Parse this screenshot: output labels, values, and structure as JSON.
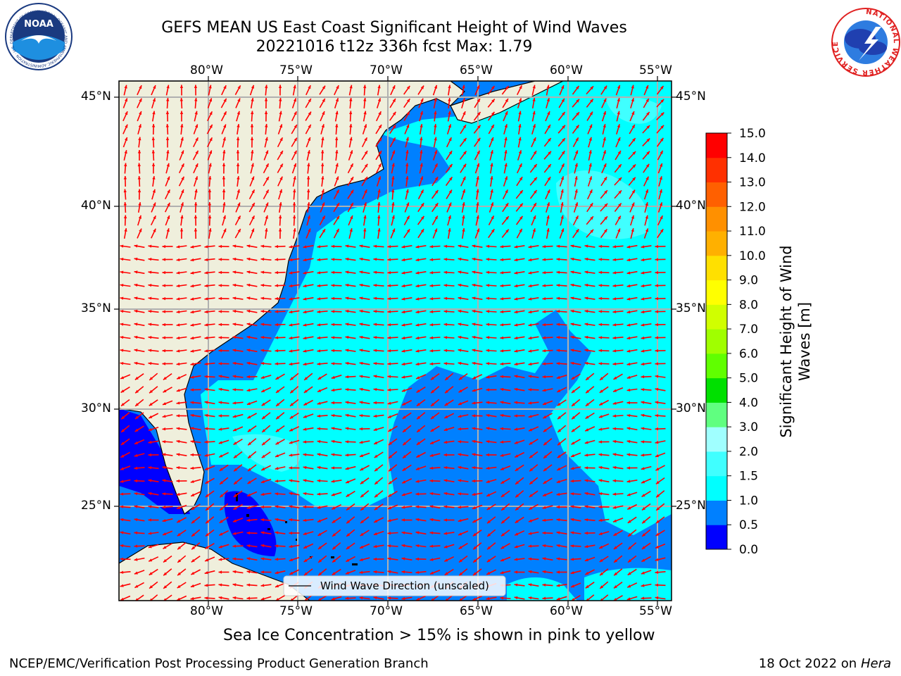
{
  "header": {
    "title_line1": "GEFS MEAN US East Coast Significant Height of Wind Waves",
    "title_line2": "20221016 t12z 336h fcst   Max: 1.79"
  },
  "logos": {
    "noaa": {
      "text": "NOAA",
      "ring_text": "NATIONAL OCEANIC AND ATMOSPHERIC ADMINISTRATION · U.S. DEPARTMENT OF COMMERCE"
    },
    "nws": {
      "ring_text": "NATIONAL WEATHER SERVICE"
    }
  },
  "map": {
    "lon_labels": [
      "80°W",
      "75°W",
      "70°W",
      "65°W",
      "60°W",
      "55°W"
    ],
    "lat_labels": [
      "45°N",
      "40°N",
      "35°N",
      "30°N",
      "25°N"
    ],
    "legend_label": "Wind Wave Direction (unscaled)",
    "arrow_color": "#ff0000",
    "land_color": "#efefdc"
  },
  "colorbar": {
    "label_line1": "Significant Height of Wind",
    "label_line2": "Waves [m]",
    "ticks": [
      "0.0",
      "0.5",
      "1.0",
      "1.5",
      "2.0",
      "3.0",
      "4.0",
      "5.0",
      "6.0",
      "7.0",
      "8.0",
      "9.0",
      "10.0",
      "11.0",
      "12.0",
      "13.0",
      "14.0",
      "15.0"
    ],
    "colors": [
      "#0000ff",
      "#0080ff",
      "#00ffff",
      "#40ffff",
      "#a0ffff",
      "#60ff80",
      "#00e000",
      "#60ff00",
      "#a0ff00",
      "#d0ff00",
      "#ffff00",
      "#ffe000",
      "#ffb000",
      "#ff9000",
      "#ff6000",
      "#ff3000",
      "#ff0000"
    ]
  },
  "notes": {
    "sea_ice": "Sea Ice Concentration > 15% is shown in pink to yellow"
  },
  "footer": {
    "left": "NCEP/EMC/Verification Post Processing Product Generation Branch",
    "right_prefix": "18 Oct 2022 on ",
    "right_host": "Hera"
  }
}
